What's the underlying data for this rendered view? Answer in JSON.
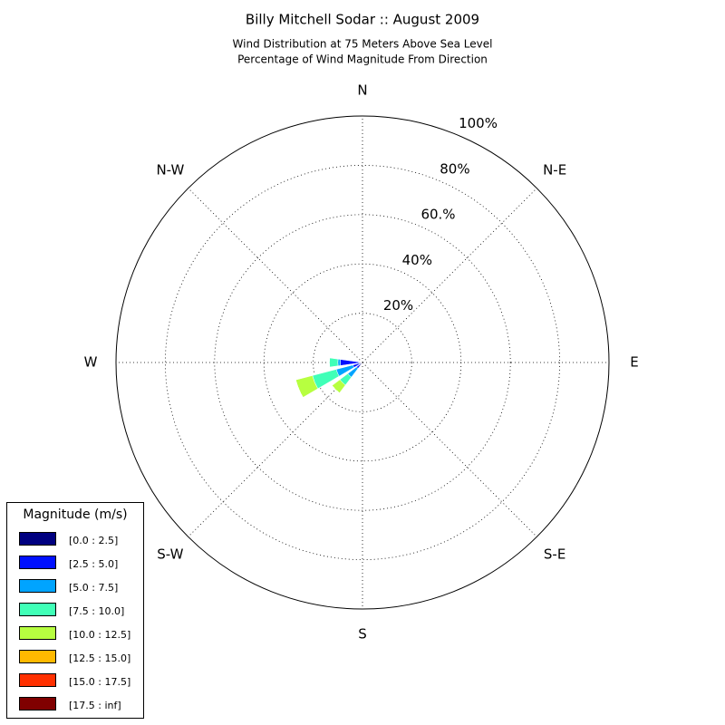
{
  "chart_data": {
    "type": "windrose",
    "title": "Billy Mitchell Sodar :: August 2009",
    "subtitle": [
      "Wind Distribution at 75 Meters Above Sea Level",
      "Percentage of Wind Magnitude From Direction"
    ],
    "directions": [
      "N",
      "N-E",
      "E",
      "S-E",
      "S",
      "S-W",
      "W",
      "N-W"
    ],
    "x": [
      0,
      22.5,
      45,
      67.5,
      90,
      112.5,
      135,
      157.5,
      180,
      202.5,
      225,
      247.5,
      270,
      292.5,
      315,
      337.5
    ],
    "rlim": [
      0,
      100
    ],
    "rticks": [
      {
        "value": 20,
        "label": "20%"
      },
      {
        "value": 40,
        "label": "40%"
      },
      {
        "value": 60,
        "label": "60.%"
      },
      {
        "value": 80,
        "label": "80%"
      },
      {
        "value": 100,
        "label": "100%"
      }
    ],
    "grid": true,
    "legend_title": "Magnitude (m/s)",
    "legend_position": "lower left",
    "series": [
      {
        "name": "[0.0 : 2.5]",
        "color": "#000080",
        "values": [
          0,
          0,
          0,
          0,
          0,
          0,
          0,
          0,
          0,
          0,
          1.5,
          1.5,
          1.5,
          0,
          0,
          0
        ]
      },
      {
        "name": "[2.5 : 5.0]",
        "color": "#0010ff",
        "values": [
          0,
          0,
          0,
          0,
          0,
          0,
          0,
          0,
          0,
          0,
          1.5,
          2.5,
          7.5,
          0,
          0,
          0
        ]
      },
      {
        "name": "[5.0 : 7.5]",
        "color": "#00a4ff",
        "values": [
          0,
          0,
          0,
          0,
          0,
          0,
          0,
          0,
          0,
          0,
          4.5,
          7,
          1,
          0,
          0,
          0
        ]
      },
      {
        "name": "[7.5 : 10.0]",
        "color": "#40ffb7",
        "values": [
          0,
          0,
          0,
          0,
          0,
          0,
          0,
          0,
          0,
          0,
          4,
          10,
          3.5,
          0,
          0,
          0
        ]
      },
      {
        "name": "[10.0 : 12.5]",
        "color": "#b7ff40",
        "values": [
          0,
          0,
          0,
          0,
          0,
          0,
          0,
          0,
          0,
          0,
          4,
          7,
          0,
          0,
          0,
          0
        ]
      },
      {
        "name": "[12.5 : 15.0]",
        "color": "#ffb900",
        "values": [
          0,
          0,
          0,
          0,
          0,
          0,
          0,
          0,
          0,
          0,
          0,
          0,
          0,
          0,
          0,
          0
        ]
      },
      {
        "name": "[15.0 : 17.5]",
        "color": "#ff3000",
        "values": [
          0,
          0,
          0,
          0,
          0,
          0,
          0,
          0,
          0,
          0,
          0,
          0,
          0,
          0,
          0,
          0
        ]
      },
      {
        "name": "[17.5 : inf]",
        "color": "#800000",
        "values": [
          0,
          0,
          0,
          0,
          0,
          0,
          0,
          0,
          0,
          0,
          0,
          0,
          0,
          0,
          0,
          0
        ]
      }
    ]
  }
}
